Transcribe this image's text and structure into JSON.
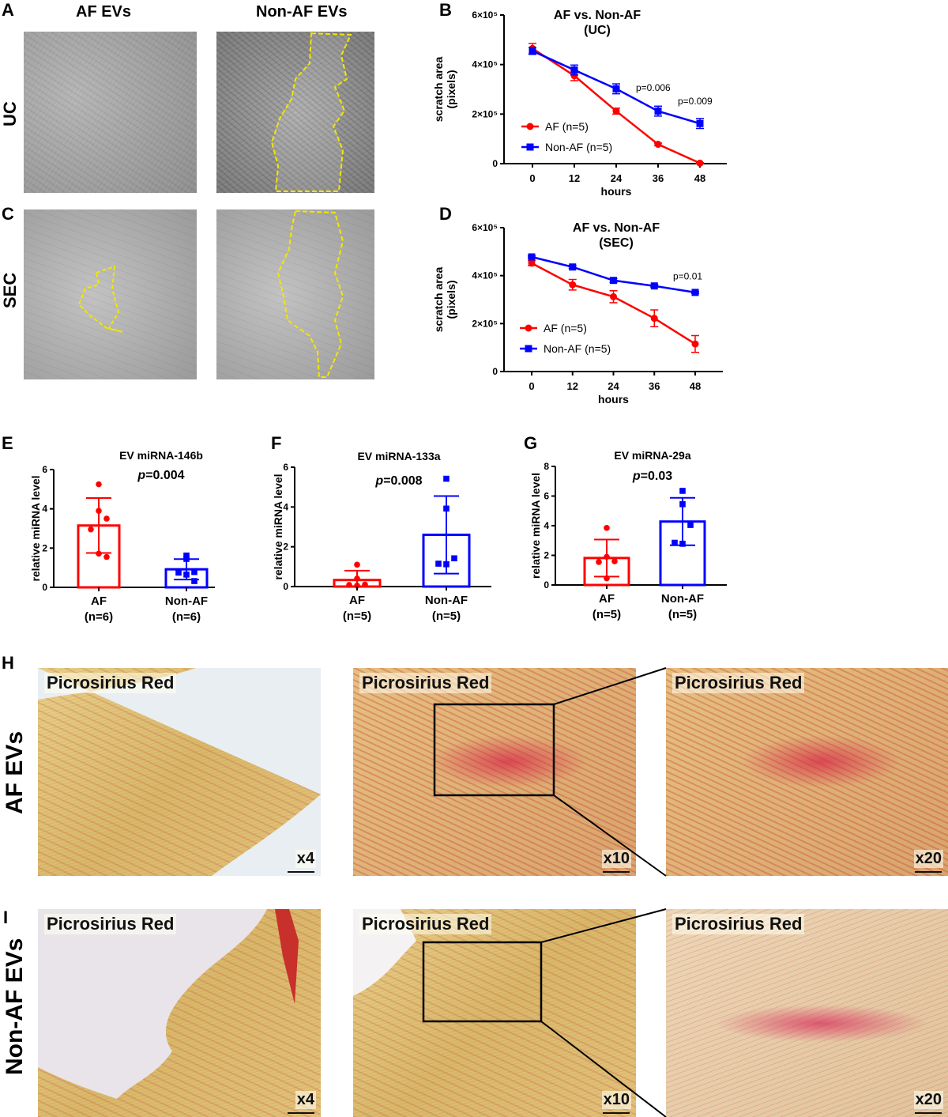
{
  "panels": {
    "A": "A",
    "B": "B",
    "C": "C",
    "D": "D",
    "E": "E",
    "F": "F",
    "G": "G",
    "H": "H",
    "I": "I"
  },
  "scratch_images": {
    "col_headers": [
      "AF EVs",
      "Non-AF EVs"
    ],
    "row_labels": [
      "UC",
      "SEC"
    ]
  },
  "histology": {
    "row_labels": [
      "AF EVs",
      "Non-AF EVs"
    ],
    "stain_label": "Picrosirius Red",
    "magnifications": [
      "x4",
      "x10",
      "x20"
    ]
  },
  "colors": {
    "af": "#ff0000",
    "non_af": "#0000ff"
  },
  "chart_data": [
    {
      "id": "B",
      "type": "line",
      "title": [
        "AF vs. Non-AF",
        "(UC)"
      ],
      "xlabel": "hours",
      "ylabel": [
        "scratch area",
        "(pixels)"
      ],
      "x": [
        0,
        12,
        24,
        36,
        48
      ],
      "xticks": [
        "0",
        "12",
        "24",
        "36",
        "48"
      ],
      "ylim": [
        0,
        600000
      ],
      "yticks": [
        0,
        200000,
        400000,
        600000
      ],
      "yticklabels": [
        "0",
        "2×10⁵",
        "4×10⁵",
        "6×10⁵"
      ],
      "legend_placement": "lower-left",
      "series": [
        {
          "name": "AF (n=5)",
          "marker": "circle",
          "values": [
            465000,
            355000,
            212000,
            78000,
            2000
          ],
          "errors": [
            20000,
            20000,
            12000,
            5000,
            2000
          ]
        },
        {
          "name": "Non-AF (n=5)",
          "marker": "square",
          "values": [
            455000,
            378000,
            302000,
            212000,
            162000
          ],
          "errors": [
            14000,
            20000,
            20000,
            20000,
            20000
          ]
        }
      ],
      "annotations": [
        {
          "text": "p=0.006",
          "x": 36,
          "y": 310000
        },
        {
          "text": "p=0.009",
          "x": 48,
          "y": 255000
        }
      ]
    },
    {
      "id": "D",
      "type": "line",
      "title": [
        "AF  vs. Non-AF",
        "(SEC)"
      ],
      "xlabel": "hours",
      "ylabel": [
        "scratch area",
        "(pixels)"
      ],
      "x": [
        0,
        12,
        24,
        36,
        48
      ],
      "xticks": [
        "0",
        "12",
        "24",
        "36",
        "48"
      ],
      "ylim": [
        0,
        600000
      ],
      "yticks": [
        0,
        200000,
        400000,
        600000
      ],
      "yticklabels": [
        "0",
        "2×10⁵",
        "4×10⁵",
        "6×10⁵"
      ],
      "legend_placement": "lower-left",
      "series": [
        {
          "name": "AF (n=5)",
          "marker": "circle",
          "values": [
            452000,
            362000,
            312000,
            222000,
            115000
          ],
          "errors": [
            10000,
            22000,
            25000,
            35000,
            35000
          ]
        },
        {
          "name": "Non-AF (n=5)",
          "marker": "square",
          "values": [
            478000,
            436000,
            380000,
            357000,
            330000
          ],
          "errors": [
            4000,
            6000,
            8000,
            5000,
            4000
          ]
        }
      ],
      "annotations": [
        {
          "text": "p=0.01",
          "x": 48,
          "y": 400000
        }
      ]
    },
    {
      "id": "E",
      "type": "bar",
      "title": "EV miRNA-146b",
      "p_prefix": "p",
      "p_value": "=0.004",
      "ylabel": "relative miRNA level",
      "categories": [
        "AF",
        "Non-AF"
      ],
      "category_n": [
        "(n=6)",
        "(n=6)"
      ],
      "ylim": [
        0,
        6
      ],
      "yticks": [
        0,
        2,
        4,
        6
      ],
      "yticklabels": [
        "0",
        "2",
        "4",
        "6"
      ],
      "means": [
        3.15,
        0.92
      ],
      "sd": [
        1.4,
        0.52
      ],
      "points": [
        [
          5.25,
          3.9,
          3.5,
          2.95,
          1.72,
          1.55
        ],
        [
          1.62,
          1.45,
          0.78,
          0.75,
          0.65,
          0.32
        ]
      ]
    },
    {
      "id": "F",
      "type": "bar",
      "title": "EV miRNA-133a",
      "p_prefix": "p",
      "p_value": "=0.008",
      "ylabel": "relative miRNA level",
      "categories": [
        "AF",
        "Non-AF"
      ],
      "category_n": [
        "(n=5)",
        "(n=5)"
      ],
      "ylim": [
        0,
        6
      ],
      "yticks": [
        0,
        2,
        4,
        6
      ],
      "yticklabels": [
        "0",
        "2",
        "4",
        "6"
      ],
      "means": [
        0.33,
        2.6
      ],
      "sd": [
        0.47,
        1.95
      ],
      "points": [
        [
          1.1,
          0.4,
          0.1,
          0.08,
          0.05
        ],
        [
          5.42,
          3.92,
          1.42,
          1.15,
          1.12
        ]
      ]
    },
    {
      "id": "G",
      "type": "bar",
      "title": "EV miRNA-29a",
      "p_prefix": "p",
      "p_value": "=0.03",
      "ylabel": "relative miRNA level",
      "categories": [
        "AF",
        "Non-AF"
      ],
      "category_n": [
        "(n=5)",
        "(n=5)"
      ],
      "ylim": [
        0,
        8
      ],
      "yticks": [
        0,
        2,
        4,
        6,
        8
      ],
      "yticklabels": [
        "0",
        "2",
        "4",
        "6",
        "8"
      ],
      "means": [
        1.82,
        4.28
      ],
      "sd": [
        1.25,
        1.6
      ],
      "points": [
        [
          3.85,
          1.9,
          1.6,
          1.55,
          0.45
        ],
        [
          6.35,
          5.45,
          4.05,
          2.85,
          2.78
        ]
      ]
    }
  ]
}
